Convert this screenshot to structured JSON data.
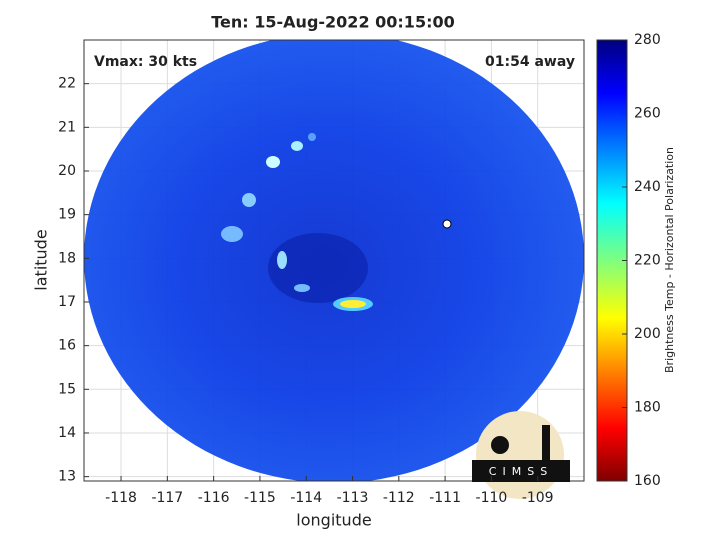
{
  "chart_data": {
    "type": "image",
    "title": "Ten: 15-Aug-2022 00:15:00",
    "xlabel": "longitude",
    "ylabel": "latitude",
    "xlim": [
      -118.8,
      -108.0
    ],
    "ylim": [
      12.9,
      23.0
    ],
    "xticks": [
      -118,
      -117,
      -116,
      -115,
      -114,
      -113,
      -112,
      -111,
      -110,
      -109
    ],
    "yticks": [
      13,
      14,
      15,
      16,
      17,
      18,
      19,
      20,
      21,
      22
    ],
    "grid": true,
    "annotations": [
      "Vmax: 30 kts",
      "01:54 away"
    ],
    "colorbar": {
      "label": "Brightness Temp - Horizontal Polarization",
      "lim": [
        160,
        280
      ],
      "ticks": [
        160,
        180,
        200,
        220,
        240,
        260,
        280
      ]
    },
    "logo": "CIMSS"
  }
}
